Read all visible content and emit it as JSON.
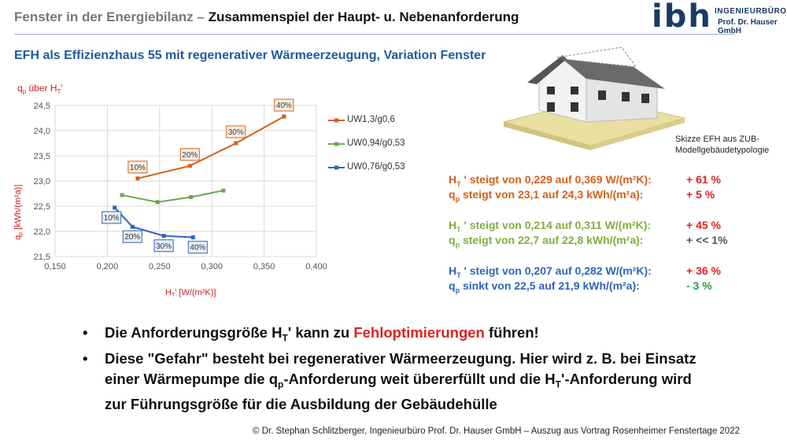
{
  "header": {
    "title_part1": "Fenster in der Energiebilanz – ",
    "title_part2": "Zusammenspiel der Haupt- u. Nebenanforderung",
    "logo_letters": "ibh",
    "logo_line1": "INGENIEURBÜRO",
    "logo_line2": "Prof. Dr. Hauser GmbH"
  },
  "subtitle": "EFH als Effizienzhaus 55 mit regenerativer Wärmeerzeugung, Variation Fenster",
  "chart_data": {
    "type": "line",
    "title": "qp über HT'",
    "xlabel": "HT' [W/(m²K)]",
    "ylabel": "qp [kWh/(m²a)]",
    "xlim": [
      0.15,
      0.4
    ],
    "ylim": [
      21.5,
      24.5
    ],
    "xticks": [
      "0,150",
      "0,200",
      "0,250",
      "0,300",
      "0,350",
      "0,400"
    ],
    "yticks": [
      "21,5",
      "22,0",
      "22,5",
      "23,0",
      "23,5",
      "24,0",
      "24,5"
    ],
    "grid": "both",
    "legend_position": "right",
    "series": [
      {
        "name": "UW1,3/g0,6",
        "color": "#d4601a",
        "x": [
          0.229,
          0.279,
          0.323,
          0.369
        ],
        "y": [
          23.05,
          23.3,
          23.75,
          24.28
        ],
        "labels": [
          "10%",
          "20%",
          "30%",
          "40%"
        ],
        "label_style": "orange"
      },
      {
        "name": "UW0,94/g0,53",
        "color": "#6aa84f",
        "x": [
          0.214,
          0.248,
          0.28,
          0.311
        ],
        "y": [
          22.72,
          22.58,
          22.68,
          22.81
        ],
        "labels": [],
        "label_style": ""
      },
      {
        "name": "UW0,76/g0,53",
        "color": "#2e64b8",
        "x": [
          0.207,
          0.224,
          0.254,
          0.282
        ],
        "y": [
          22.47,
          22.09,
          21.91,
          21.88
        ],
        "labels": [
          "10%",
          "20%",
          "30%",
          "40%"
        ],
        "label_style": "blue"
      }
    ]
  },
  "image_caption": "Skizze EFH aus ZUB-Modellgebäudetypologie",
  "stats": [
    {
      "ht_text": "steigt von 0,229 auf 0,369 W/(m²K):",
      "ht_val": "+ 61 %",
      "qp_text": "steigt von 23,1 auf 24,3 kWh/(m²a):",
      "qp_val": "+ 5 %",
      "color": "#d4601a",
      "qp_val_color": "#e02020",
      "ht_val_color": "#e02020"
    },
    {
      "ht_text": "steigt von 0,214 auf 0,311 W/(m²K):",
      "ht_val": "+ 45 %",
      "qp_text": "steigt von 22,7 auf 22,8 kWh/(m²a):",
      "qp_val": "+ << 1%",
      "color": "#7fae3f",
      "qp_val_color": "#555555",
      "ht_val_color": "#e02020"
    },
    {
      "ht_text": "steigt von 0,207 auf 0,282 W/(m²K):",
      "ht_val": "+ 36 %",
      "qp_text": "sinkt von 22,5 auf 21,9 kWh/(m²a):",
      "qp_val": "- 3 %",
      "color": "#2e64b8",
      "qp_val_color": "#2a9d3f",
      "ht_val_color": "#e02020"
    }
  ],
  "bullets": {
    "b1_pre": "Die Anforderungsgröße H",
    "b1_sub": "T",
    "b1_mid": "' kann zu ",
    "b1_red": "Fehloptimierungen",
    "b1_post": " führen!",
    "b2_a": "Diese \"Gefahr\" besteht bei regenerativer Wärmeerzeugung. Hier wird z. B. bei Einsatz einer Wärmepumpe die q",
    "b2_sub1": "p",
    "b2_b": "-Anforderung weit übererfüllt und die H",
    "b2_sub2": "T",
    "b2_c": "'-Anforderung wird zur Führungsgröße für die Ausbildung der Gebäudehülle"
  },
  "footer": "© Dr. Stephan Schlitzberger, Ingenieurbüro Prof. Dr. Hauser GmbH – Auszug aus Vortrag Rosenheimer Fenstertage 2022"
}
